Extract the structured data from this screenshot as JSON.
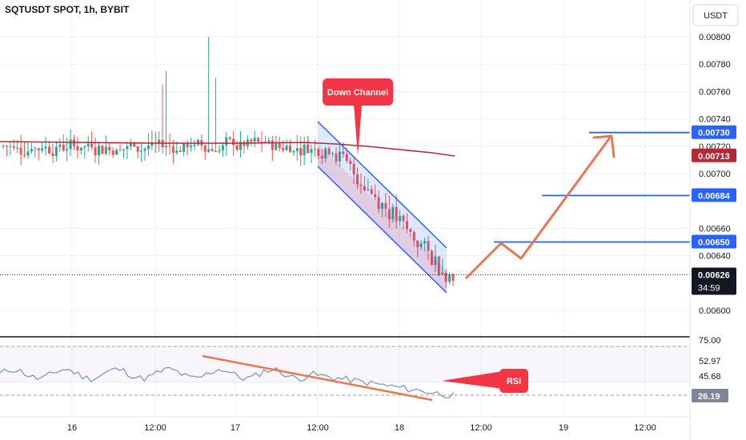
{
  "header": {
    "title": "SQTUSDT SPOT, 1h, BYBIT",
    "currency_button": "USDT"
  },
  "chart_data": [
    {
      "type": "candlestick",
      "title": "SQTUSDT SPOT, 1h, BYBIT",
      "x_ticks": [
        "16",
        "12:00",
        "17",
        "12:00",
        "18",
        "12:00",
        "19",
        "12:00"
      ],
      "y_ticks": [
        "0.00800",
        "0.00780",
        "0.00760",
        "0.00740",
        "0.00720",
        "0.00700",
        "0.00660",
        "0.00640",
        "0.00600"
      ],
      "ylim": [
        0.0059,
        0.00815
      ],
      "price_labels": [
        {
          "value": 0.0073,
          "text": "0.00730",
          "color": "#2962ff"
        },
        {
          "value": 0.00713,
          "text": "0.00713",
          "color": "#b22833"
        },
        {
          "value": 0.00684,
          "text": "0.00684",
          "color": "#2962ff"
        },
        {
          "value": 0.0065,
          "text": "0.00650",
          "color": "#2962ff"
        },
        {
          "value": 0.00626,
          "text": "0.00626",
          "color": "#131722",
          "sub": "34:59"
        }
      ],
      "annotations": {
        "down_channel": "Down Channel",
        "rsi": "RSI"
      },
      "levels": [
        0.0073,
        0.00684,
        0.0065
      ],
      "up_color": "#26a69a",
      "down_color": "#ef5350",
      "ma_color": "#b22833"
    },
    {
      "type": "line",
      "title": "",
      "y_ticks": [
        "75.00",
        "52.97",
        "45.68"
      ],
      "rsi_value": "26.19",
      "ylim": [
        10,
        78
      ],
      "line_color": "#7e9bb5"
    }
  ]
}
